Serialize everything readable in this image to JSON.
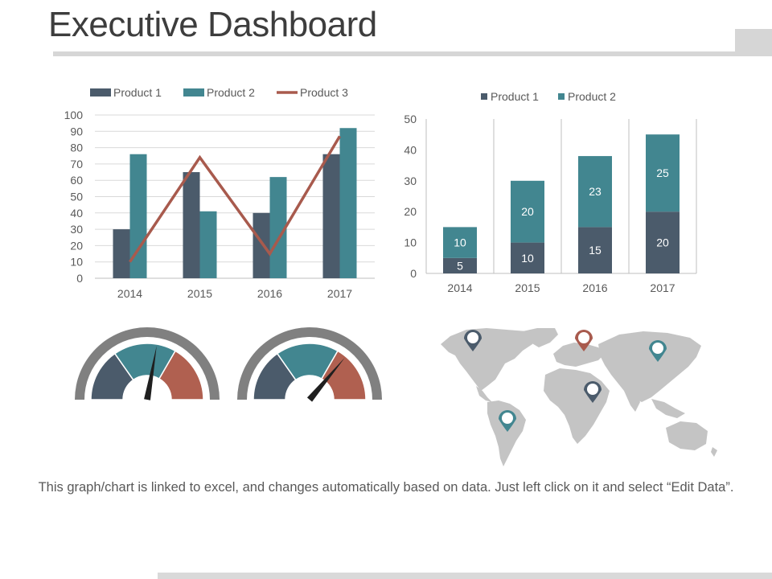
{
  "page": {
    "title": "Executive Dashboard",
    "footer_note": "This graph/chart is linked to excel, and changes automatically based on data. Just left click on it and select “Edit Data”."
  },
  "colors": {
    "product1": "#4b5b6b",
    "product2": "#428690",
    "product3": "#a85a4d",
    "gauge_red": "#b06050",
    "gauge_arc": "#808080",
    "map": "#c4c4c4"
  },
  "chart_data": [
    {
      "type": "bar",
      "categories": [
        "2014",
        "2015",
        "2016",
        "2017"
      ],
      "series": [
        {
          "name": "Product 1",
          "kind": "bar",
          "values": [
            30,
            65,
            40,
            76
          ]
        },
        {
          "name": "Product 2",
          "kind": "bar",
          "values": [
            76,
            41,
            62,
            92
          ]
        },
        {
          "name": "Product 3",
          "kind": "line",
          "values": [
            10,
            74,
            15,
            87
          ]
        }
      ],
      "yticks": [
        "0",
        "10",
        "20",
        "30",
        "40",
        "50",
        "60",
        "70",
        "80",
        "90",
        "100"
      ],
      "ylim": [
        0,
        100
      ],
      "grid": true,
      "legend": "top"
    },
    {
      "type": "bar",
      "stacked": true,
      "categories": [
        "2014",
        "2015",
        "2016",
        "2017"
      ],
      "series": [
        {
          "name": "Product 1",
          "values": [
            5,
            10,
            15,
            20
          ],
          "labels": [
            "5",
            "10",
            "15",
            "20"
          ]
        },
        {
          "name": "Product  2",
          "values": [
            10,
            20,
            23,
            25
          ],
          "labels": [
            "10",
            "20",
            "23",
            "25"
          ]
        }
      ],
      "yticks": [
        "0",
        "10",
        "20",
        "30",
        "40",
        "50"
      ],
      "ylim": [
        0,
        50
      ],
      "grid": false,
      "legend": "top"
    }
  ],
  "gauges": [
    {
      "needle_angle_deg": 80
    },
    {
      "needle_angle_deg": 50
    }
  ],
  "map_pins": [
    {
      "x": 588,
      "y": 421,
      "color": "#4b5b6b"
    },
    {
      "x": 726,
      "y": 421,
      "color": "#a85a4d"
    },
    {
      "x": 818,
      "y": 434,
      "color": "#428690"
    },
    {
      "x": 737,
      "y": 485,
      "color": "#4b5b6b"
    },
    {
      "x": 631,
      "y": 521,
      "color": "#428690"
    }
  ]
}
